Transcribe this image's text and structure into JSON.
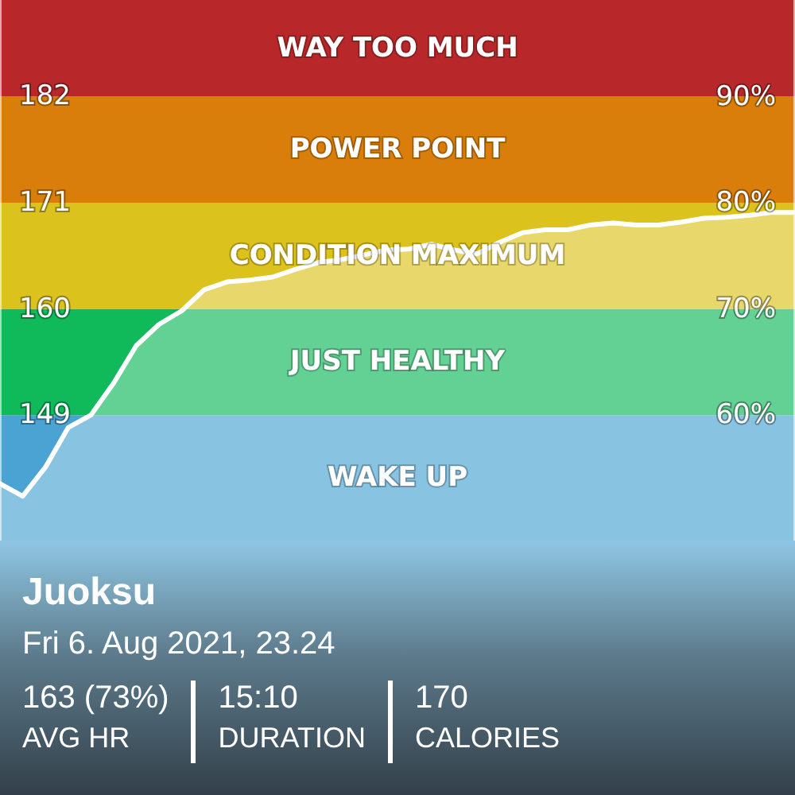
{
  "chart_data": {
    "type": "area",
    "title": "Juoksu",
    "subtitle": "Fri 6. Aug 2021, 23.24",
    "categories": [
      null,
      null,
      null,
      null,
      null,
      null,
      null,
      null,
      null,
      null,
      null,
      null,
      null,
      null,
      null,
      null,
      null,
      null,
      null,
      null,
      null,
      null,
      null,
      null,
      null,
      null,
      null,
      null,
      null,
      null,
      null,
      null,
      null,
      null,
      null,
      null
    ],
    "series": [
      {
        "color": "#ffffff",
        "values": [
          141.9,
          140.6,
          143.6,
          147.7,
          149,
          152.3,
          156.2,
          158.4,
          159.8,
          162,
          162.8,
          163,
          163.3,
          164.1,
          164.8,
          165.1,
          165.6,
          166.1,
          166.2,
          166.7,
          166.1,
          165.7,
          166.9,
          167.9,
          168.2,
          168.2,
          168.7,
          168.9,
          168.7,
          168.7,
          169,
          169.4,
          169.5,
          169.7,
          170,
          170
        ]
      }
    ],
    "ylim": [
      136,
      192
    ],
    "yticks": [
      149,
      160,
      171,
      182
    ],
    "y2lim": [
      48.2,
      99.1
    ],
    "y2ticks": [
      {
        "value": 60,
        "label": "60%"
      },
      {
        "value": 70,
        "label": "70%"
      },
      {
        "value": 80,
        "label": "80%"
      },
      {
        "value": 90,
        "label": "90%"
      }
    ],
    "grid": false,
    "marker": "none",
    "line_style": "solid",
    "bands": [
      {
        "axis": "y",
        "from": 136,
        "to": 149,
        "label": "WAKE UP",
        "color": "#4aa3d3"
      },
      {
        "axis": "y",
        "from": 149,
        "to": 160,
        "label": "JUST HEALTHY",
        "color": "#10b95a"
      },
      {
        "axis": "y",
        "from": 160,
        "to": 171,
        "label": "CONDITION MAXIMUM",
        "color": "#dcc21c"
      },
      {
        "axis": "y",
        "from": 171,
        "to": 182,
        "label": "POWER POINT",
        "color": "#d97e0a"
      },
      {
        "axis": "y",
        "from": 182,
        "to": 192,
        "label": "WAY TOO MUCH",
        "color": "#b8282a"
      }
    ],
    "annotations": [
      "163 (73%)",
      "AVG HR",
      "15:10",
      "DURATION",
      "170",
      "CALORIES"
    ]
  }
}
